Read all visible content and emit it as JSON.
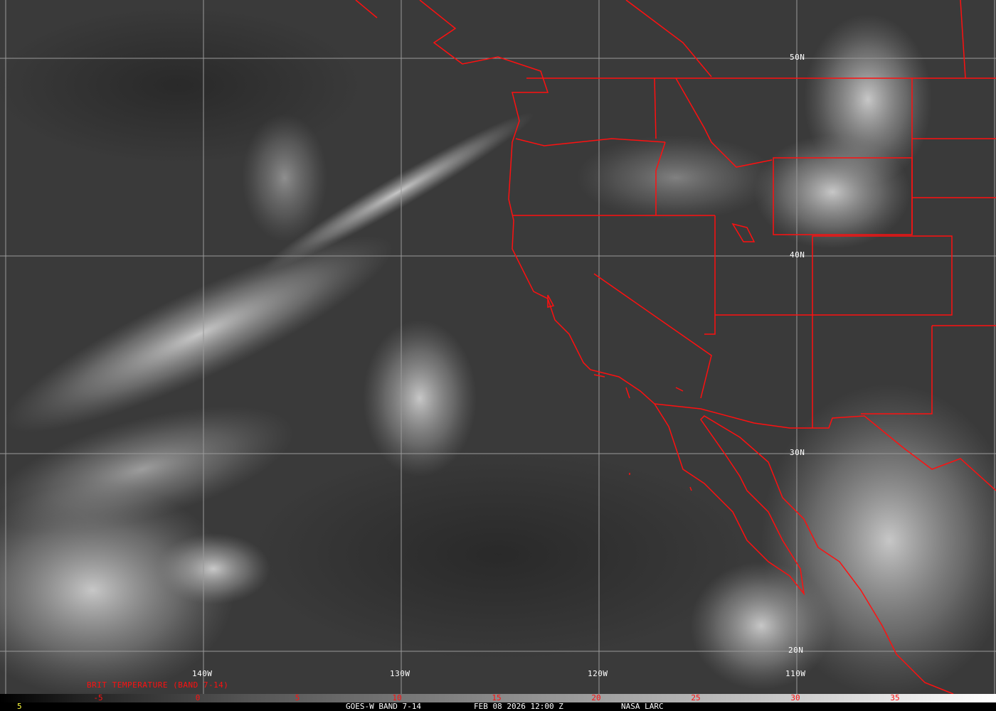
{
  "title": "BRIT TEMPERATURE (BAND 7-14)",
  "footer": {
    "left_value": "5",
    "satellite": "GOES-W BAND 7-14",
    "datetime": "FEB 08 2026 12:00 Z",
    "source": "NASA LARC"
  },
  "longitude_labels": [
    "140W",
    "130W",
    "120W",
    "110W"
  ],
  "latitude_labels": [
    "50N",
    "40N",
    "30N",
    "20N"
  ],
  "colorbar_ticks": [
    "-5",
    "0",
    "5",
    "10",
    "15",
    "20",
    "25",
    "30",
    "35"
  ],
  "colors": {
    "overlay": "#ff1010",
    "grid": "#9a9a9a",
    "background": "#3a3a3a"
  }
}
